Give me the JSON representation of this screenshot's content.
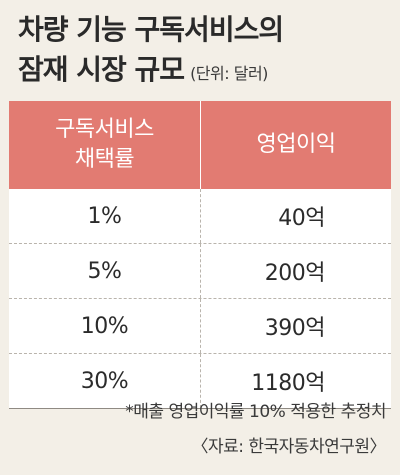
{
  "title": {
    "line1": "차량 기능 구독서비스의",
    "line2": "잠재 시장 규모",
    "unit": "(단위: 달러)"
  },
  "table": {
    "header": {
      "col1_line1": "구독서비스",
      "col1_line2": "채택률",
      "col2": "영업이익"
    },
    "rows": [
      {
        "rate": "1%",
        "profit": "40억"
      },
      {
        "rate": "5%",
        "profit": "200억"
      },
      {
        "rate": "10%",
        "profit": "390억"
      },
      {
        "rate": "30%",
        "profit": "1180억"
      }
    ]
  },
  "footnote": "*매출 영업이익률 10% 적용한 추정치",
  "source": "〈자료: 한국자동차연구원〉",
  "colors": {
    "background": "#f3efe7",
    "header": "#e27b72",
    "row": "#ffffff"
  }
}
